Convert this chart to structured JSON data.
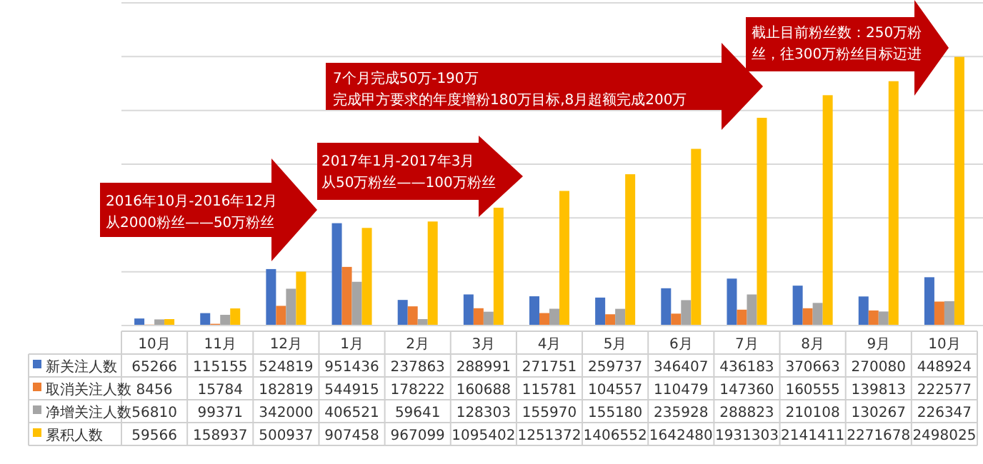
{
  "chart_data": {
    "type": "bar",
    "categories": [
      "10月",
      "11月",
      "12月",
      "1月",
      "2月",
      "3月",
      "4月",
      "5月",
      "6月",
      "7月",
      "8月",
      "9月",
      "10月"
    ],
    "series": [
      {
        "name": "新关注人数",
        "color": "#4472c4",
        "values": [
          65266,
          115155,
          524819,
          951436,
          237863,
          288991,
          271751,
          259737,
          346407,
          436183,
          370663,
          270080,
          448924
        ]
      },
      {
        "name": "取消关注人数",
        "color": "#ed7d31",
        "values": [
          8456,
          15784,
          182819,
          544915,
          178222,
          160688,
          115781,
          104557,
          110479,
          147360,
          160555,
          139813,
          222577
        ]
      },
      {
        "name": "净增关注人数",
        "color": "#a5a5a5",
        "values": [
          56810,
          99371,
          342000,
          406521,
          59641,
          128303,
          155970,
          155180,
          235928,
          288823,
          210108,
          130267,
          226347
        ]
      },
      {
        "name": "累积人数",
        "color": "#ffc000",
        "values": [
          59566,
          158937,
          500937,
          907458,
          967099,
          1095402,
          1251372,
          1406552,
          1642480,
          1931303,
          2141411,
          2271678,
          2498025
        ]
      }
    ],
    "ylim": [
      0,
      3000000
    ],
    "yticks": [
      {
        "value": 0,
        "label": null
      },
      {
        "value": 500000,
        "label": null
      },
      {
        "value": 1000000,
        "label": null
      },
      {
        "value": 1500000,
        "label": null
      },
      {
        "value": 2000000,
        "label": null
      },
      {
        "value": 2500000,
        "label": null
      },
      {
        "value": 3000000,
        "label": null
      }
    ],
    "tick_labels": "x",
    "grid": "y",
    "data_labels": true,
    "legend": "bottom left",
    "annotations": [
      "2016年10月-2016年12月从2000粉丝——50万粉丝",
      "2017年1月-2017年3月从50万粉丝——100万粉丝",
      "7个月完成50万-190万完成甲方要求的年度增粉180万目标,8月超额完成200万",
      "截止目前粉丝数：250万粉丝，往300万粉丝目标迈进"
    ]
  }
}
